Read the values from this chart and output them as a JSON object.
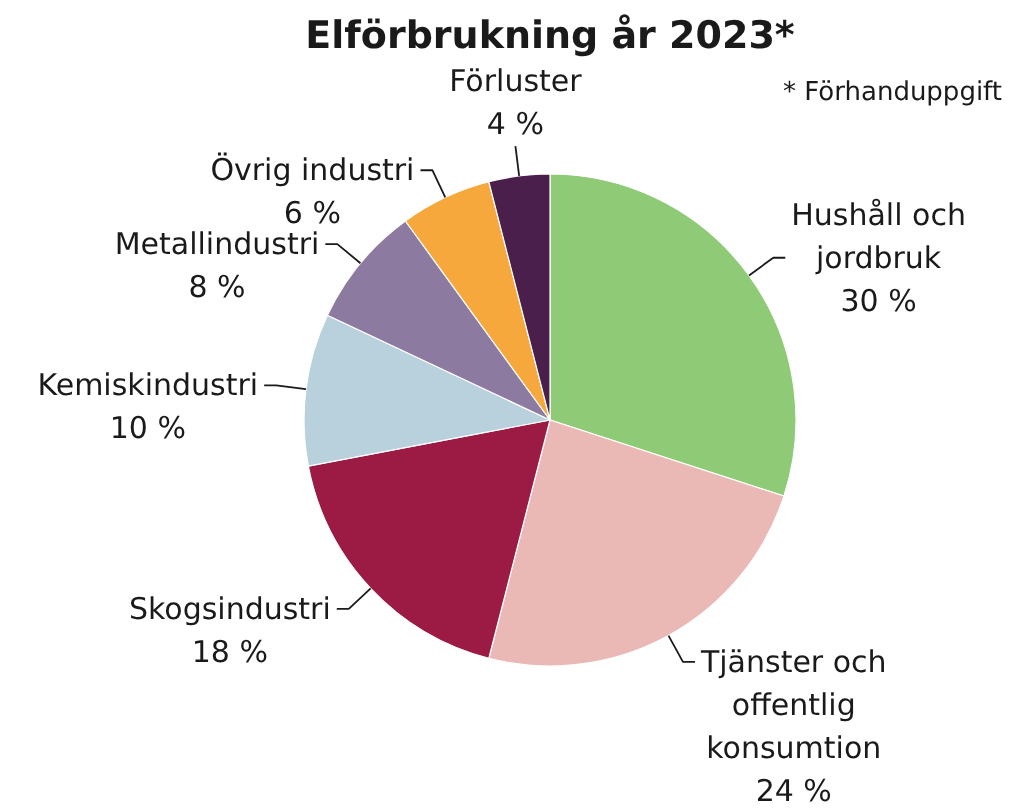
{
  "chart_data": {
    "type": "pie",
    "title": "Elförbrukning år 2023*",
    "categories": [
      "Hushåll och jordbruk",
      "Tjänster och offentlig konsumtion",
      "Skogsindustri",
      "Kemiskindustri",
      "Metallindustri",
      "Övrig industri",
      "Förluster"
    ],
    "values": [
      30,
      24,
      18,
      10,
      8,
      6,
      4
    ],
    "colors": [
      "#8fca76",
      "#ebb9b5",
      "#9b1b45",
      "#b9d1dc",
      "#8d7aa1",
      "#f7a83c",
      "#4b1f4c"
    ],
    "value_labels": [
      "30 %",
      "24 %",
      "18 %",
      "10 %",
      "8 %",
      "6 %",
      "4 %"
    ],
    "annotations": [
      "* Förhanduppgift"
    ]
  }
}
